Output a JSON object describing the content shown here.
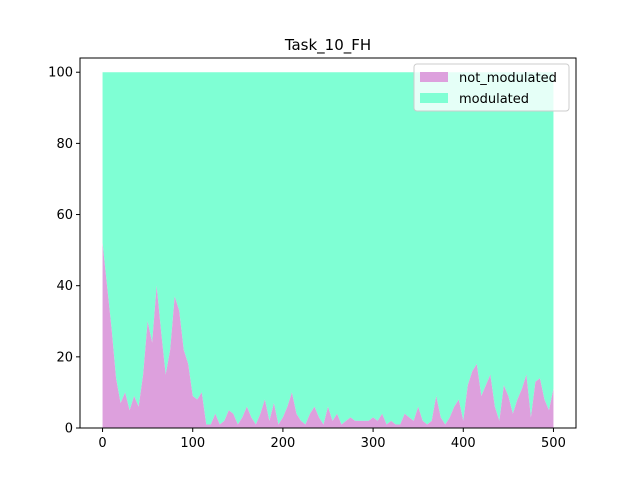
{
  "chart_data": {
    "type": "area",
    "title": "Task_10_FH",
    "xlabel": "",
    "ylabel": "",
    "xlim": [
      -25,
      525
    ],
    "ylim": [
      0,
      104
    ],
    "x_ticks": [
      0,
      100,
      200,
      300,
      400,
      500
    ],
    "y_ticks": [
      0,
      20,
      40,
      60,
      80,
      100
    ],
    "legend_position": "top-right",
    "grid": false,
    "stacked": true,
    "total": 100,
    "series": [
      {
        "name": "not_modulated",
        "color": "#dda0dd",
        "x": [
          0,
          5,
          10,
          15,
          20,
          25,
          30,
          35,
          40,
          45,
          50,
          55,
          60,
          65,
          70,
          75,
          80,
          85,
          90,
          95,
          100,
          105,
          110,
          115,
          120,
          125,
          130,
          135,
          140,
          145,
          150,
          155,
          160,
          165,
          170,
          175,
          180,
          185,
          190,
          195,
          200,
          205,
          210,
          215,
          220,
          225,
          230,
          235,
          240,
          245,
          250,
          255,
          260,
          265,
          270,
          275,
          280,
          285,
          290,
          295,
          300,
          305,
          310,
          315,
          320,
          325,
          330,
          335,
          340,
          345,
          350,
          355,
          360,
          365,
          370,
          375,
          380,
          385,
          390,
          395,
          400,
          405,
          410,
          415,
          420,
          425,
          430,
          435,
          440,
          445,
          450,
          455,
          460,
          465,
          470,
          475,
          480,
          485,
          490,
          495,
          500
        ],
        "values": [
          52,
          40,
          28,
          14,
          7,
          10,
          5,
          9,
          6,
          15,
          30,
          24,
          40,
          27,
          15,
          22,
          37,
          33,
          22,
          18,
          9,
          8,
          10,
          1,
          1,
          4,
          1,
          2,
          5,
          4,
          1,
          3,
          6,
          3,
          1,
          4,
          8,
          2,
          7,
          1,
          3,
          6,
          10,
          4,
          2,
          1,
          4,
          6,
          3,
          1,
          6,
          2,
          4,
          1,
          2,
          3,
          2,
          2,
          2,
          2,
          3,
          2,
          4,
          1,
          2,
          1,
          1,
          4,
          3,
          2,
          6,
          2,
          1,
          2,
          9,
          3,
          1,
          3,
          6,
          8,
          2,
          12,
          16,
          18,
          9,
          12,
          15,
          6,
          2,
          12,
          9,
          4,
          8,
          11,
          15,
          3,
          13,
          14,
          8,
          5,
          11
        ]
      },
      {
        "name": "modulated",
        "color": "#7fffd4",
        "note_values_are_complement": true
      }
    ]
  }
}
